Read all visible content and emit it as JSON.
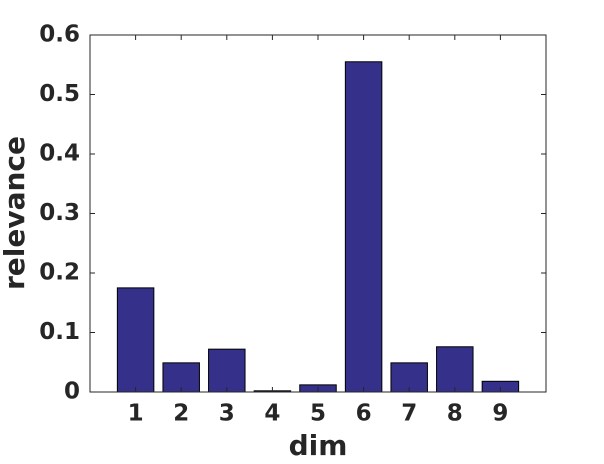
{
  "chart_data": {
    "type": "bar",
    "x": [
      1,
      2,
      3,
      4,
      5,
      6,
      7,
      8,
      9
    ],
    "values": [
      0.175,
      0.049,
      0.072,
      0.002,
      0.012,
      0.555,
      0.049,
      0.076,
      0.018
    ],
    "color": "#35308a",
    "xlabel": "dim",
    "ylabel": "relevance",
    "xlim": [
      0,
      10
    ],
    "xticks": [
      1,
      2,
      3,
      4,
      5,
      6,
      7,
      8,
      9
    ],
    "ylim": [
      0,
      0.6
    ],
    "yticks": [
      0,
      0.1,
      0.2,
      0.3,
      0.4,
      0.5,
      0.6
    ],
    "bar_width": 0.8
  }
}
